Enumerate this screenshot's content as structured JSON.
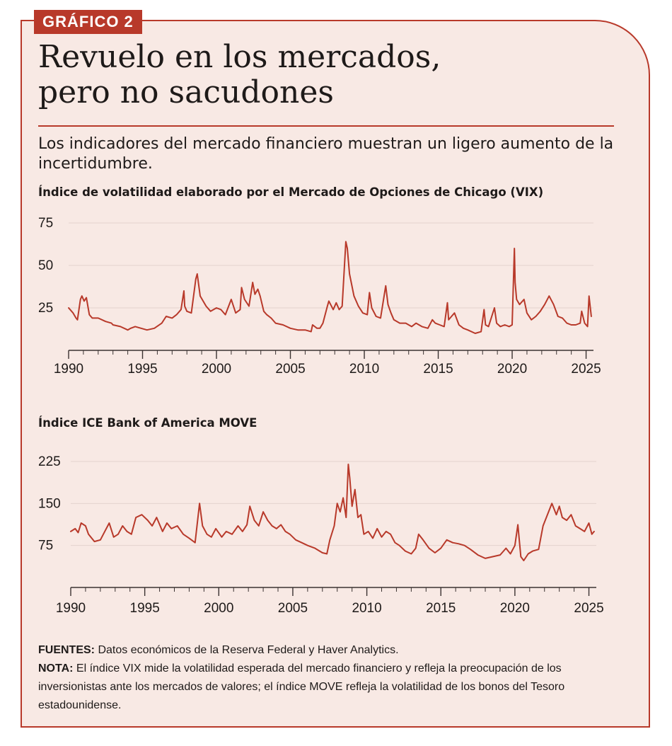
{
  "badge": "GRÁFICO 2",
  "title_line1": "Revuelo en los mercados,",
  "title_line2": "pero no sacudones",
  "subtitle": "Los indicadores del mercado financiero muestran un ligero aumento de la incertidumbre.",
  "notes": {
    "sources_label": "FUENTES:",
    "sources_text": " Datos económicos de la Reserva Federal y Haver Analytics.",
    "note_label": "NOTA:",
    "note_text": " El índice VIX mide la volatilidad esperada del mercado financiero y refleja la preocupación de los inversionistas ante los mercados de valores; el índice MOVE refleja la volatilidad de los bonos del Tesoro estadounidense."
  },
  "colors": {
    "accent": "#b8392a",
    "background": "#f8e9e4",
    "text": "#1e1a19",
    "grid": "#e3d3ce"
  },
  "chart_data": [
    {
      "type": "line",
      "title": "Índice de volatilidad elaborado por el Mercado de Opciones de Chicago (VIX)",
      "xlim": [
        1990,
        2025.5
      ],
      "ylim": [
        0,
        75
      ],
      "x_ticks": [
        1990,
        1995,
        2000,
        2005,
        2010,
        2015,
        2020,
        2025
      ],
      "y_ticks": [
        25,
        50,
        75
      ],
      "grid": true,
      "series": [
        {
          "x": [
            1990.0,
            1990.3,
            1990.5,
            1990.6,
            1990.8,
            1990.9,
            1991.05,
            1991.2,
            1991.4,
            1991.6,
            1992.0,
            1992.5,
            1992.9,
            1993.0,
            1993.5,
            1994.0,
            1994.2,
            1994.5,
            1994.9,
            1995.3,
            1995.8,
            1996.3,
            1996.6,
            1997.0,
            1997.3,
            1997.6,
            1997.8,
            1997.85,
            1998.0,
            1998.3,
            1998.6,
            1998.7,
            1998.9,
            1999.3,
            1999.6,
            2000.0,
            2000.3,
            2000.6,
            2001.0,
            2001.3,
            2001.6,
            2001.7,
            2001.9,
            2002.2,
            2002.45,
            2002.6,
            2002.8,
            2002.95,
            2003.2,
            2003.4,
            2003.7,
            2004.0,
            2004.5,
            2005.0,
            2005.5,
            2006.0,
            2006.4,
            2006.5,
            2006.8,
            2007.0,
            2007.2,
            2007.5,
            2007.6,
            2007.9,
            2008.1,
            2008.3,
            2008.5,
            2008.75,
            2008.85,
            2009.0,
            2009.3,
            2009.6,
            2009.9,
            2010.2,
            2010.35,
            2010.5,
            2010.8,
            2011.1,
            2011.45,
            2011.6,
            2011.8,
            2012.0,
            2012.4,
            2012.8,
            2013.2,
            2013.5,
            2013.9,
            2014.3,
            2014.6,
            2014.8,
            2015.1,
            2015.4,
            2015.62,
            2015.7,
            2015.9,
            2016.1,
            2016.4,
            2016.7,
            2017.0,
            2017.5,
            2017.9,
            2018.1,
            2018.2,
            2018.4,
            2018.8,
            2018.95,
            2019.2,
            2019.5,
            2019.8,
            2020.0,
            2020.15,
            2020.2,
            2020.3,
            2020.5,
            2020.8,
            2021.0,
            2021.3,
            2021.6,
            2021.9,
            2022.2,
            2022.5,
            2022.8,
            2023.1,
            2023.4,
            2023.7,
            2024.0,
            2024.3,
            2024.6,
            2024.7,
            2024.9,
            2025.1,
            2025.2,
            2025.35
          ],
          "y": [
            25,
            22,
            19,
            18,
            30,
            32,
            29,
            31,
            21,
            19,
            19,
            17,
            16,
            15,
            14,
            12,
            13,
            14,
            13,
            12,
            13,
            16,
            20,
            19,
            21,
            24,
            35,
            26,
            23,
            22,
            42,
            45,
            32,
            26,
            23,
            25,
            24,
            21,
            30,
            22,
            24,
            37,
            30,
            26,
            40,
            33,
            36,
            32,
            23,
            21,
            19,
            16,
            15,
            13,
            12,
            12,
            11,
            15,
            13,
            13,
            16,
            26,
            29,
            24,
            28,
            24,
            26,
            64,
            60,
            45,
            32,
            26,
            22,
            21,
            34,
            25,
            20,
            19,
            38,
            27,
            22,
            18,
            16,
            16,
            14,
            16,
            14,
            13,
            18,
            16,
            15,
            14,
            28,
            18,
            20,
            22,
            15,
            13,
            12,
            10,
            11,
            24,
            15,
            14,
            25,
            16,
            14,
            15,
            14,
            15,
            60,
            40,
            30,
            27,
            30,
            22,
            18,
            20,
            23,
            27,
            32,
            27,
            20,
            19,
            16,
            15,
            15,
            16,
            23,
            16,
            14,
            32,
            20
          ]
        }
      ]
    },
    {
      "type": "line",
      "title": "Índice ICE Bank of America MOVE",
      "xlim": [
        1990,
        2025.5
      ],
      "ylim": [
        0,
        225
      ],
      "x_ticks": [
        1990,
        1995,
        2000,
        2005,
        2010,
        2015,
        2020,
        2025
      ],
      "y_ticks": [
        75,
        150,
        225
      ],
      "grid": true,
      "series": [
        {
          "x": [
            1990.0,
            1990.3,
            1990.5,
            1990.7,
            1991.0,
            1991.2,
            1991.6,
            1992.0,
            1992.3,
            1992.6,
            1992.9,
            1993.2,
            1993.5,
            1993.8,
            1994.1,
            1994.4,
            1994.8,
            1995.2,
            1995.5,
            1995.8,
            1996.2,
            1996.5,
            1996.8,
            1997.2,
            1997.6,
            1998.0,
            1998.4,
            1998.7,
            1998.9,
            1999.2,
            1999.5,
            1999.8,
            2000.2,
            2000.5,
            2000.9,
            2001.3,
            2001.6,
            2001.9,
            2002.1,
            2002.4,
            2002.7,
            2003.0,
            2003.3,
            2003.6,
            2003.9,
            2004.2,
            2004.5,
            2004.8,
            2005.2,
            2005.6,
            2006.0,
            2006.5,
            2007.0,
            2007.3,
            2007.5,
            2007.8,
            2008.0,
            2008.2,
            2008.4,
            2008.6,
            2008.75,
            2008.85,
            2009.0,
            2009.2,
            2009.4,
            2009.6,
            2009.8,
            2010.1,
            2010.4,
            2010.7,
            2011.0,
            2011.3,
            2011.6,
            2011.9,
            2012.2,
            2012.6,
            2013.0,
            2013.3,
            2013.5,
            2013.8,
            2014.2,
            2014.6,
            2015.0,
            2015.4,
            2015.8,
            2016.2,
            2016.6,
            2017.0,
            2017.5,
            2018.0,
            2018.5,
            2019.0,
            2019.4,
            2019.7,
            2020.0,
            2020.2,
            2020.4,
            2020.6,
            2020.9,
            2021.2,
            2021.6,
            2021.9,
            2022.2,
            2022.5,
            2022.8,
            2023.0,
            2023.2,
            2023.5,
            2023.8,
            2024.1,
            2024.4,
            2024.7,
            2025.0,
            2025.2,
            2025.35
          ],
          "y": [
            100,
            105,
            98,
            115,
            110,
            95,
            82,
            85,
            100,
            115,
            90,
            95,
            110,
            100,
            95,
            125,
            130,
            120,
            110,
            125,
            100,
            115,
            105,
            110,
            95,
            88,
            80,
            150,
            110,
            95,
            90,
            105,
            90,
            100,
            95,
            110,
            100,
            112,
            145,
            120,
            110,
            135,
            120,
            110,
            105,
            112,
            100,
            95,
            85,
            80,
            75,
            70,
            62,
            60,
            85,
            110,
            150,
            135,
            160,
            125,
            220,
            195,
            145,
            175,
            125,
            130,
            95,
            100,
            88,
            105,
            90,
            100,
            95,
            80,
            75,
            65,
            60,
            70,
            95,
            85,
            70,
            62,
            70,
            85,
            80,
            78,
            75,
            68,
            58,
            52,
            55,
            58,
            70,
            60,
            75,
            112,
            55,
            48,
            60,
            65,
            68,
            110,
            130,
            150,
            130,
            145,
            125,
            120,
            130,
            110,
            105,
            100,
            115,
            95,
            100
          ]
        }
      ]
    }
  ]
}
